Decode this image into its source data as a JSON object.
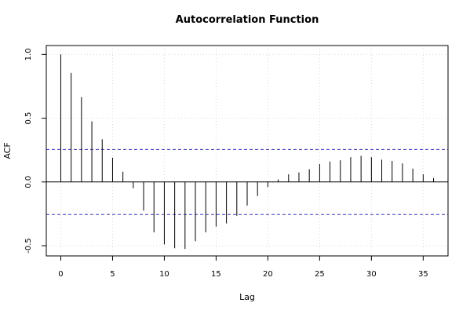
{
  "chart_data": {
    "type": "bar",
    "title": "Autocorrelation Function",
    "xlabel": "Lag",
    "ylabel": "ACF",
    "xlim": [
      -1.4,
      37.4
    ],
    "ylim": [
      -0.58,
      1.07
    ],
    "x_ticks": [
      0,
      5,
      10,
      15,
      20,
      25,
      30,
      35
    ],
    "y_ticks": [
      -0.5,
      0.0,
      0.5,
      1.0
    ],
    "y_tick_labels": [
      "-0.5",
      "0.0",
      "0.5",
      "1.0"
    ],
    "confidence_bounds": [
      0.255,
      -0.255
    ],
    "grid": true,
    "x": [
      0,
      1,
      2,
      3,
      4,
      5,
      6,
      7,
      8,
      9,
      10,
      11,
      12,
      13,
      14,
      15,
      16,
      17,
      18,
      19,
      20,
      21,
      22,
      23,
      24,
      25,
      26,
      27,
      28,
      29,
      30,
      31,
      32,
      33,
      34,
      35,
      36
    ],
    "values": [
      1.0,
      0.855,
      0.665,
      0.475,
      0.335,
      0.19,
      0.08,
      -0.05,
      -0.225,
      -0.395,
      -0.49,
      -0.52,
      -0.525,
      -0.465,
      -0.395,
      -0.35,
      -0.325,
      -0.265,
      -0.185,
      -0.11,
      -0.04,
      0.02,
      0.06,
      0.075,
      0.1,
      0.14,
      0.16,
      0.17,
      0.195,
      0.205,
      0.195,
      0.175,
      0.165,
      0.145,
      0.105,
      0.06,
      0.03
    ],
    "colors": {
      "bars": "#000000",
      "confidence": "#3b3bb8",
      "grid": "#d9d9d9",
      "axis": "#000000"
    }
  }
}
